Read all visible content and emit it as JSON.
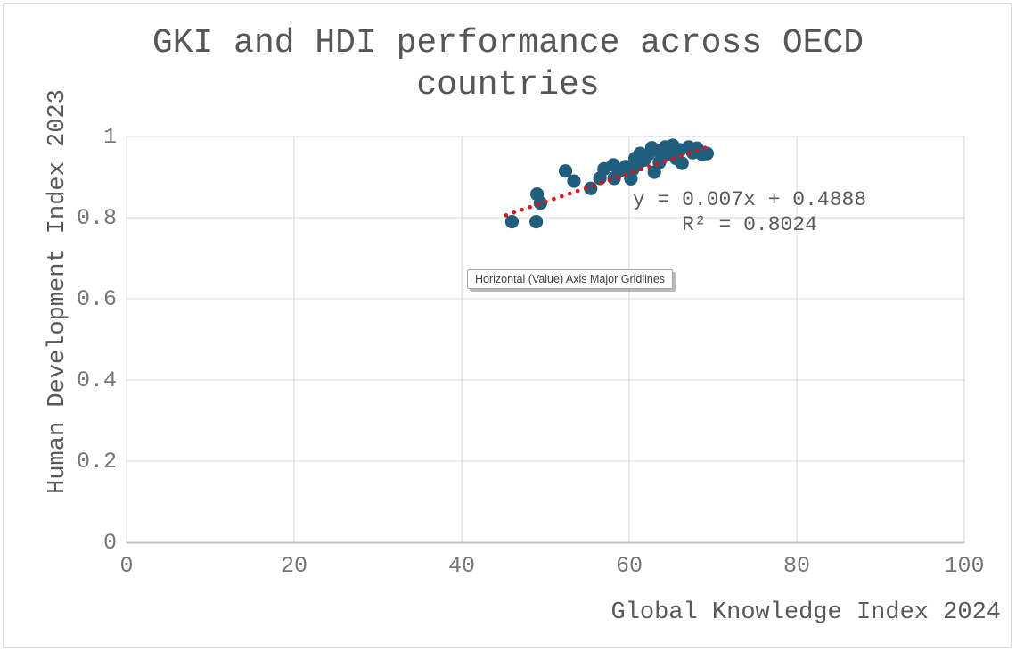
{
  "header": {
    "title_line1": "GKI and HDI performance across OECD",
    "title_line2": "countries"
  },
  "tooltip": {
    "text": "Horizontal (Value) Axis Major Gridlines"
  },
  "chart_data": {
    "type": "scatter",
    "title": "GKI and HDI performance across OECD countries",
    "xlabel": "Global Knowledge Index 2024",
    "ylabel": "Human Development Index 2023",
    "xlim": [
      0,
      100
    ],
    "ylim": [
      0,
      1
    ],
    "x_ticks": [
      0,
      20,
      40,
      60,
      80,
      100
    ],
    "x_tick_labels": [
      "0",
      "20",
      "40",
      "60",
      "80",
      "100"
    ],
    "y_ticks": [
      0,
      0.2,
      0.4,
      0.6,
      0.8,
      1
    ],
    "y_tick_labels": [
      "0",
      "0.2",
      "0.4",
      "0.6",
      "0.8",
      "1"
    ],
    "grid": true,
    "legend": false,
    "series": [
      {
        "name": "OECD countries",
        "marker": "circle",
        "marker_radius_px": 7.6,
        "color": "#1f5f7d",
        "points": [
          [
            46.0,
            0.79
          ],
          [
            48.9,
            0.79
          ],
          [
            49.0,
            0.858
          ],
          [
            49.4,
            0.836
          ],
          [
            52.4,
            0.915
          ],
          [
            53.4,
            0.89
          ],
          [
            55.4,
            0.872
          ],
          [
            56.5,
            0.897
          ],
          [
            57.0,
            0.92
          ],
          [
            58.1,
            0.93
          ],
          [
            58.2,
            0.897
          ],
          [
            58.8,
            0.914
          ],
          [
            59.6,
            0.926
          ],
          [
            60.2,
            0.896
          ],
          [
            60.4,
            0.918
          ],
          [
            60.7,
            0.946
          ],
          [
            61.0,
            0.93
          ],
          [
            61.3,
            0.958
          ],
          [
            61.8,
            0.942
          ],
          [
            62.3,
            0.956
          ],
          [
            62.7,
            0.972
          ],
          [
            63.0,
            0.912
          ],
          [
            63.4,
            0.966
          ],
          [
            63.6,
            0.936
          ],
          [
            63.9,
            0.95
          ],
          [
            64.3,
            0.974
          ],
          [
            64.7,
            0.956
          ],
          [
            65.2,
            0.978
          ],
          [
            65.6,
            0.946
          ],
          [
            66.1,
            0.967
          ],
          [
            66.3,
            0.934
          ],
          [
            67.1,
            0.974
          ],
          [
            67.6,
            0.96
          ],
          [
            68.1,
            0.971
          ],
          [
            68.7,
            0.956
          ],
          [
            69.3,
            0.958
          ]
        ]
      }
    ],
    "trendline": {
      "type": "linear",
      "slope": 0.007,
      "intercept": 0.4888,
      "r_squared": 0.8024,
      "equation_label": "y = 0.007x + 0.4888",
      "r_squared_label": "R² = 0.8024",
      "x_range": [
        45.3,
        69.7
      ],
      "style": "dotted",
      "color": "#f00d0d"
    },
    "colors": {
      "gridline": "#d9d9d9",
      "axis_line": "#bfbfbf",
      "tick_text": "#767676",
      "title_text": "#565656"
    }
  }
}
